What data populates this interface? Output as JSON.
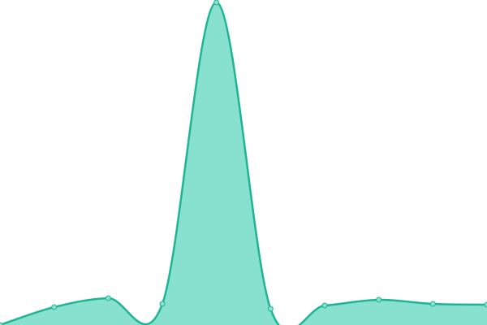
{
  "chart_data": {
    "type": "area",
    "categories": [
      null,
      null,
      null,
      null,
      null,
      null,
      null,
      null,
      null,
      null
    ],
    "values": [
      0,
      22,
      33,
      26,
      397,
      20,
      24,
      31,
      26,
      25
    ],
    "ylim": [
      0,
      400
    ],
    "color": "#1db594",
    "fill": "#88e0cf"
  }
}
